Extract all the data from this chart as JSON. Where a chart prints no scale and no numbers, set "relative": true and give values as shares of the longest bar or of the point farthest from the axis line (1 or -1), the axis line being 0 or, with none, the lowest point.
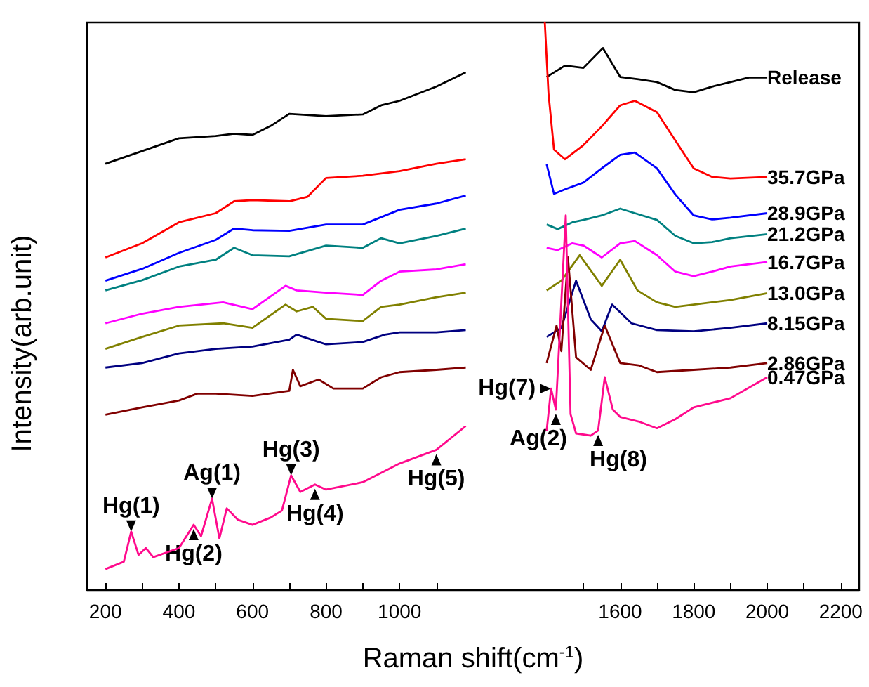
{
  "chart_data": {
    "type": "line",
    "relative": true,
    "xlabel": "Raman shift(cm$^{-1}$)",
    "ylabel": "Intensity(arb.unit)",
    "xlim": [
      150,
      2250
    ],
    "xticks": [
      200,
      {
        "value": 300,
        "label": null
      },
      400,
      {
        "value": 500,
        "label": null
      },
      600,
      {
        "value": 700,
        "label": null
      },
      800,
      {
        "value": 900,
        "label": null
      },
      1000,
      {
        "value": 1100,
        "label": null
      },
      {
        "value": 1500,
        "label": null
      },
      1600,
      {
        "value": 1700,
        "label": null
      },
      1800,
      {
        "value": 1900,
        "label": null
      },
      2000,
      {
        "value": 2100,
        "label": null
      },
      2200
    ],
    "grid": false,
    "legend": false,
    "marker": "none",
    "line_style": "solid",
    "series": [
      {
        "name": "Release",
        "color": "#000000",
        "x": [
          200,
          400,
          500,
          550,
          600,
          650,
          700,
          800,
          900,
          950,
          1000,
          1100,
          1180,
          1400,
          1450,
          1500,
          1553,
          1600,
          1650,
          1700,
          1750,
          1800,
          1850,
          1900,
          1950,
          2000
        ],
        "values": [
          0.751,
          0.796,
          0.8,
          0.804,
          0.802,
          0.818,
          0.839,
          0.835,
          0.838,
          0.854,
          0.862,
          0.887,
          0.912,
          0.904,
          0.924,
          0.92,
          0.955,
          0.904,
          0.9,
          0.895,
          0.881,
          0.877,
          0.887,
          0.895,
          0.903,
          0.903
        ]
      },
      {
        "name": "35.7GPa",
        "color": "#ff0000",
        "x": [
          200,
          300,
          400,
          500,
          550,
          600,
          700,
          750,
          800,
          900,
          1000,
          1100,
          1180,
          1395,
          1405,
          1420,
          1450,
          1500,
          1550,
          1600,
          1640,
          1700,
          1750,
          1800,
          1850,
          1900,
          2000
        ],
        "values": [
          0.586,
          0.611,
          0.648,
          0.664,
          0.685,
          0.687,
          0.685,
          0.693,
          0.726,
          0.73,
          0.738,
          0.751,
          0.759,
          1.0,
          0.875,
          0.776,
          0.759,
          0.784,
          0.817,
          0.854,
          0.862,
          0.842,
          0.792,
          0.743,
          0.728,
          0.725,
          0.728
        ]
      },
      {
        "name": "28.9GPa",
        "color": "#0000ff",
        "x": [
          200,
          300,
          400,
          500,
          550,
          600,
          700,
          800,
          900,
          1000,
          1100,
          1180,
          1400,
          1420,
          1450,
          1500,
          1550,
          1600,
          1640,
          1700,
          1750,
          1800,
          1850,
          1900,
          2000
        ],
        "values": [
          0.545,
          0.566,
          0.594,
          0.617,
          0.637,
          0.634,
          0.633,
          0.644,
          0.644,
          0.67,
          0.681,
          0.695,
          0.75,
          0.698,
          0.706,
          0.718,
          0.743,
          0.767,
          0.771,
          0.743,
          0.697,
          0.66,
          0.653,
          0.656,
          0.664
        ]
      },
      {
        "name": "21.2GPa",
        "color": "#008080",
        "x": [
          200,
          300,
          400,
          500,
          550,
          600,
          700,
          800,
          900,
          950,
          1000,
          1100,
          1180,
          1400,
          1430,
          1470,
          1500,
          1550,
          1600,
          1640,
          1700,
          1750,
          1800,
          1850,
          1900,
          2000
        ],
        "values": [
          0.528,
          0.546,
          0.57,
          0.582,
          0.603,
          0.59,
          0.588,
          0.607,
          0.603,
          0.62,
          0.611,
          0.624,
          0.637,
          0.644,
          0.636,
          0.648,
          0.652,
          0.66,
          0.672,
          0.664,
          0.652,
          0.624,
          0.611,
          0.613,
          0.62,
          0.627
        ]
      },
      {
        "name": "16.7GPa",
        "color": "#ff00ff",
        "x": [
          200,
          300,
          400,
          520,
          600,
          690,
          720,
          800,
          900,
          950,
          1000,
          1100,
          1180,
          1400,
          1430,
          1470,
          1500,
          1550,
          1600,
          1640,
          1700,
          1750,
          1800,
          1850,
          1900,
          2000
        ],
        "values": [
          0.47,
          0.487,
          0.499,
          0.507,
          0.495,
          0.536,
          0.528,
          0.524,
          0.52,
          0.545,
          0.561,
          0.565,
          0.574,
          0.603,
          0.599,
          0.611,
          0.607,
          0.586,
          0.611,
          0.615,
          0.59,
          0.561,
          0.553,
          0.561,
          0.57,
          0.578
        ]
      },
      {
        "name": "13.0GPa",
        "color": "#808000",
        "x": [
          200,
          300,
          400,
          520,
          600,
          690,
          720,
          764,
          800,
          900,
          950,
          1000,
          1100,
          1180,
          1400,
          1440,
          1490,
          1550,
          1600,
          1647,
          1700,
          1750,
          1800,
          1900,
          2000
        ],
        "values": [
          0.425,
          0.446,
          0.466,
          0.47,
          0.462,
          0.503,
          0.491,
          0.499,
          0.478,
          0.474,
          0.499,
          0.503,
          0.516,
          0.524,
          0.528,
          0.545,
          0.59,
          0.536,
          0.582,
          0.528,
          0.507,
          0.499,
          0.503,
          0.511,
          0.523
        ]
      },
      {
        "name": "8.15GPa",
        "color": "#000080",
        "x": [
          200,
          300,
          400,
          500,
          600,
          700,
          720,
          780,
          800,
          900,
          960,
          1000,
          1100,
          1180,
          1400,
          1440,
          1480,
          1520,
          1550,
          1578,
          1631,
          1700,
          1800,
          1900,
          2000
        ],
        "values": [
          0.392,
          0.4,
          0.417,
          0.425,
          0.429,
          0.441,
          0.45,
          0.437,
          0.433,
          0.437,
          0.45,
          0.454,
          0.454,
          0.458,
          0.446,
          0.462,
          0.545,
          0.477,
          0.456,
          0.503,
          0.47,
          0.458,
          0.456,
          0.462,
          0.47
        ]
      },
      {
        "name": "2.86GPa",
        "color": "#800000",
        "x": [
          200,
          300,
          400,
          450,
          500,
          600,
          700,
          710,
          730,
          780,
          820,
          900,
          950,
          1000,
          1100,
          1180,
          1400,
          1427,
          1440,
          1458,
          1480,
          1520,
          1558,
          1600,
          1650,
          1700,
          1800,
          1900,
          2000
        ],
        "values": [
          0.309,
          0.322,
          0.334,
          0.346,
          0.346,
          0.342,
          0.351,
          0.388,
          0.359,
          0.371,
          0.355,
          0.355,
          0.375,
          0.384,
          0.388,
          0.392,
          0.4,
          0.466,
          0.421,
          0.586,
          0.41,
          0.388,
          0.466,
          0.4,
          0.396,
          0.384,
          0.388,
          0.392,
          0.4
        ]
      },
      {
        "name": "0.47GPa",
        "color": "#ff0a8c",
        "x": [
          200,
          250,
          270,
          290,
          310,
          330,
          400,
          440,
          460,
          490,
          510,
          530,
          560,
          600,
          650,
          680,
          705,
          730,
          770,
          800,
          900,
          1000,
          1100,
          1180,
          1400,
          1412,
          1425,
          1452,
          1465,
          1480,
          1520,
          1540,
          1558,
          1580,
          1600,
          1650,
          1700,
          1750,
          1800,
          1900,
          2000
        ],
        "values": [
          0.037,
          0.05,
          0.103,
          0.062,
          0.074,
          0.058,
          0.074,
          0.115,
          0.095,
          0.161,
          0.091,
          0.144,
          0.124,
          0.115,
          0.128,
          0.14,
          0.202,
          0.173,
          0.186,
          0.177,
          0.19,
          0.223,
          0.247,
          0.289,
          0.28,
          0.355,
          0.318,
          0.66,
          0.31,
          0.276,
          0.272,
          0.281,
          0.375,
          0.318,
          0.305,
          0.297,
          0.285,
          0.301,
          0.322,
          0.338,
          0.375
        ]
      }
    ],
    "annotations": [
      {
        "text": "Hg(1)",
        "x": 270,
        "y": 0.103
      },
      {
        "text": "Hg(2)",
        "x": 440,
        "y": 0.115
      },
      {
        "text": "Ag(1)",
        "x": 490,
        "y": 0.161
      },
      {
        "text": "Hg(3)",
        "x": 705,
        "y": 0.202
      },
      {
        "text": "Hg(4)",
        "x": 770,
        "y": 0.186
      },
      {
        "text": "Hg(5)",
        "x": 1100,
        "y": 0.247
      },
      {
        "text": "Hg(7)",
        "x": 1412,
        "y": 0.355
      },
      {
        "text": "Ag(2)",
        "x": 1425,
        "y": 0.318
      },
      {
        "text": "Hg(8)",
        "x": 1540,
        "y": 0.281
      }
    ]
  }
}
